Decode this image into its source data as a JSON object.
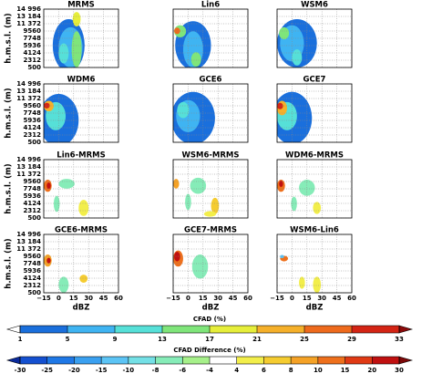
{
  "chart_data": {
    "type": "contour",
    "xlim": [
      -15,
      60
    ],
    "xticks": [
      {
        "value": -15,
        "label": "−15"
      },
      0,
      15,
      30,
      45,
      60
    ],
    "xlabel": "dBZ",
    "ylim": [
      500,
      14996
    ],
    "yticks": [
      500,
      2312,
      4124,
      5936,
      7748,
      9560,
      {
        "value": 11372,
        "label": "11 372"
      },
      {
        "value": 13184,
        "label": "13 184"
      },
      {
        "value": 14996,
        "label": "14 996"
      }
    ],
    "ylabel": "h.m.s.l. (m)",
    "grid": true,
    "colorbars": [
      {
        "title": "CFAD (%)",
        "levels": [
          1,
          5,
          9,
          13,
          17,
          21,
          25,
          29,
          33
        ],
        "colors": [
          "#ffffff",
          "#1a6fdc",
          "#3fb4f2",
          "#56e0d8",
          "#7fe57a",
          "#e6ee3a",
          "#f5b02a",
          "#ee6a1c",
          "#d42414",
          "#8c0a0a"
        ],
        "panels": [
          {
            "title": "MRMS",
            "blobs": [
              {
                "x": 10,
                "y": 6000,
                "rx": 16,
                "ry": 6500,
                "level": 3
              },
              {
                "x": 12,
                "y": 5500,
                "rx": 12,
                "ry": 5000,
                "level": 7
              },
              {
                "x": 5,
                "y": 4000,
                "rx": 5,
                "ry": 2500,
                "level": 11
              },
              {
                "x": 18,
                "y": 5000,
                "rx": 5,
                "ry": 4500,
                "level": 15
              },
              {
                "x": 18,
                "y": 12500,
                "rx": 4,
                "ry": 1800,
                "level": 19
              }
            ]
          },
          {
            "title": "Lin6",
            "blobs": [
              {
                "x": 5,
                "y": 6000,
                "rx": 18,
                "ry": 6000,
                "level": 3
              },
              {
                "x": 5,
                "y": 5000,
                "rx": 10,
                "ry": 4500,
                "level": 7
              },
              {
                "x": -8,
                "y": 9500,
                "rx": 6,
                "ry": 1500,
                "level": 15
              },
              {
                "x": -11,
                "y": 9600,
                "rx": 3,
                "ry": 800,
                "level": 27
              },
              {
                "x": 8,
                "y": 2500,
                "rx": 5,
                "ry": 1800,
                "level": 15
              }
            ]
          },
          {
            "title": "WSM6",
            "blobs": [
              {
                "x": 5,
                "y": 6500,
                "rx": 20,
                "ry": 6000,
                "level": 3
              },
              {
                "x": 0,
                "y": 6500,
                "rx": 12,
                "ry": 4500,
                "level": 7
              },
              {
                "x": -8,
                "y": 9000,
                "rx": 5,
                "ry": 1500,
                "level": 15
              },
              {
                "x": 5,
                "y": 3000,
                "rx": 5,
                "ry": 2000,
                "level": 11
              }
            ]
          },
          {
            "title": "WDM6",
            "blobs": [
              {
                "x": 0,
                "y": 6000,
                "rx": 20,
                "ry": 6500,
                "level": 3
              },
              {
                "x": -3,
                "y": 7000,
                "rx": 10,
                "ry": 3500,
                "level": 9
              },
              {
                "x": -10,
                "y": 9500,
                "rx": 5,
                "ry": 1300,
                "level": 23
              },
              {
                "x": -12,
                "y": 9600,
                "rx": 3,
                "ry": 700,
                "level": 30
              }
            ]
          },
          {
            "title": "GCE6",
            "blobs": [
              {
                "x": 5,
                "y": 6500,
                "rx": 22,
                "ry": 6500,
                "level": 3
              },
              {
                "x": 0,
                "y": 7000,
                "rx": 12,
                "ry": 4000,
                "level": 7
              },
              {
                "x": -5,
                "y": 8500,
                "rx": 6,
                "ry": 2000,
                "level": 11
              }
            ]
          },
          {
            "title": "GCE7",
            "blobs": [
              {
                "x": 0,
                "y": 6500,
                "rx": 20,
                "ry": 6500,
                "level": 3
              },
              {
                "x": -5,
                "y": 7000,
                "rx": 10,
                "ry": 3500,
                "level": 9
              },
              {
                "x": -10,
                "y": 9000,
                "rx": 5,
                "ry": 1800,
                "level": 21
              },
              {
                "x": -12,
                "y": 9500,
                "rx": 3,
                "ry": 800,
                "level": 30
              }
            ]
          }
        ]
      },
      {
        "title": "CFAD Difference (%)",
        "levels": [
          -30,
          -25,
          -20,
          -15,
          -10,
          -8,
          -6,
          -4,
          4,
          6,
          8,
          10,
          15,
          20,
          30
        ],
        "colors": [
          "#0a2a9c",
          "#1450d0",
          "#1f78e6",
          "#3aa0f0",
          "#5cc4f5",
          "#74e0e6",
          "#86ecb8",
          "#a6f08a",
          "#ffffff",
          "#f2ee4a",
          "#f5cc30",
          "#f5a226",
          "#ee701c",
          "#e03a14",
          "#c01010",
          "#7c0808"
        ],
        "panels": [
          {
            "title": "Lin6-MRMS",
            "blobs": [
              {
                "x": -11,
                "y": 8500,
                "rx": 4,
                "ry": 1500,
                "level": 12
              },
              {
                "x": -10,
                "y": 8500,
                "rx": 2,
                "ry": 800,
                "level": 25
              },
              {
                "x": 8,
                "y": 9000,
                "rx": 8,
                "ry": 1200,
                "level": -7
              },
              {
                "x": -2,
                "y": 4000,
                "rx": 3,
                "ry": 2000,
                "level": -7
              },
              {
                "x": 25,
                "y": 3000,
                "rx": 5,
                "ry": 2000,
                "level": 5
              }
            ]
          },
          {
            "title": "WSM6-MRMS",
            "blobs": [
              {
                "x": -12,
                "y": 9000,
                "rx": 3,
                "ry": 1200,
                "level": 9
              },
              {
                "x": 10,
                "y": 8500,
                "rx": 8,
                "ry": 2000,
                "level": -7
              },
              {
                "x": 0,
                "y": 4500,
                "rx": 3,
                "ry": 2000,
                "level": -7
              },
              {
                "x": 27,
                "y": 3500,
                "rx": 4,
                "ry": 2000,
                "level": 7
              },
              {
                "x": 22,
                "y": 1500,
                "rx": 6,
                "ry": 700,
                "level": 5
              }
            ]
          },
          {
            "title": "WDM6-MRMS",
            "blobs": [
              {
                "x": -11,
                "y": 8500,
                "rx": 4,
                "ry": 1500,
                "level": 12
              },
              {
                "x": -11,
                "y": 9000,
                "rx": 2,
                "ry": 800,
                "level": 25
              },
              {
                "x": 15,
                "y": 8000,
                "rx": 8,
                "ry": 2000,
                "level": -7
              },
              {
                "x": 2,
                "y": 4000,
                "rx": 3,
                "ry": 1800,
                "level": -7
              },
              {
                "x": 25,
                "y": 3000,
                "rx": 4,
                "ry": 1500,
                "level": 5
              }
            ]
          },
          {
            "title": "GCE6-MRMS",
            "blobs": [
              {
                "x": -11,
                "y": 8500,
                "rx": 4,
                "ry": 1500,
                "level": 9
              },
              {
                "x": -10,
                "y": 8500,
                "rx": 2,
                "ry": 700,
                "level": 22
              },
              {
                "x": 5,
                "y": 2500,
                "rx": 5,
                "ry": 2000,
                "level": -7
              },
              {
                "x": 25,
                "y": 4000,
                "rx": 4,
                "ry": 1000,
                "level": 7
              }
            ]
          },
          {
            "title": "GCE7-MRMS",
            "blobs": [
              {
                "x": -10,
                "y": 9000,
                "rx": 5,
                "ry": 2000,
                "level": 12
              },
              {
                "x": -11,
                "y": 9500,
                "rx": 3,
                "ry": 1200,
                "level": 25
              },
              {
                "x": 12,
                "y": 7000,
                "rx": 8,
                "ry": 3000,
                "level": -7
              }
            ]
          },
          {
            "title": "WSM6-Lin6",
            "blobs": [
              {
                "x": -8,
                "y": 9000,
                "rx": 4,
                "ry": 700,
                "level": 12
              },
              {
                "x": -10,
                "y": 9500,
                "rx": 2,
                "ry": 400,
                "level": -12
              },
              {
                "x": 25,
                "y": 2500,
                "rx": 4,
                "ry": 2000,
                "level": 5
              },
              {
                "x": 10,
                "y": 3000,
                "rx": 3,
                "ry": 1500,
                "level": 5
              }
            ]
          }
        ]
      }
    ]
  }
}
